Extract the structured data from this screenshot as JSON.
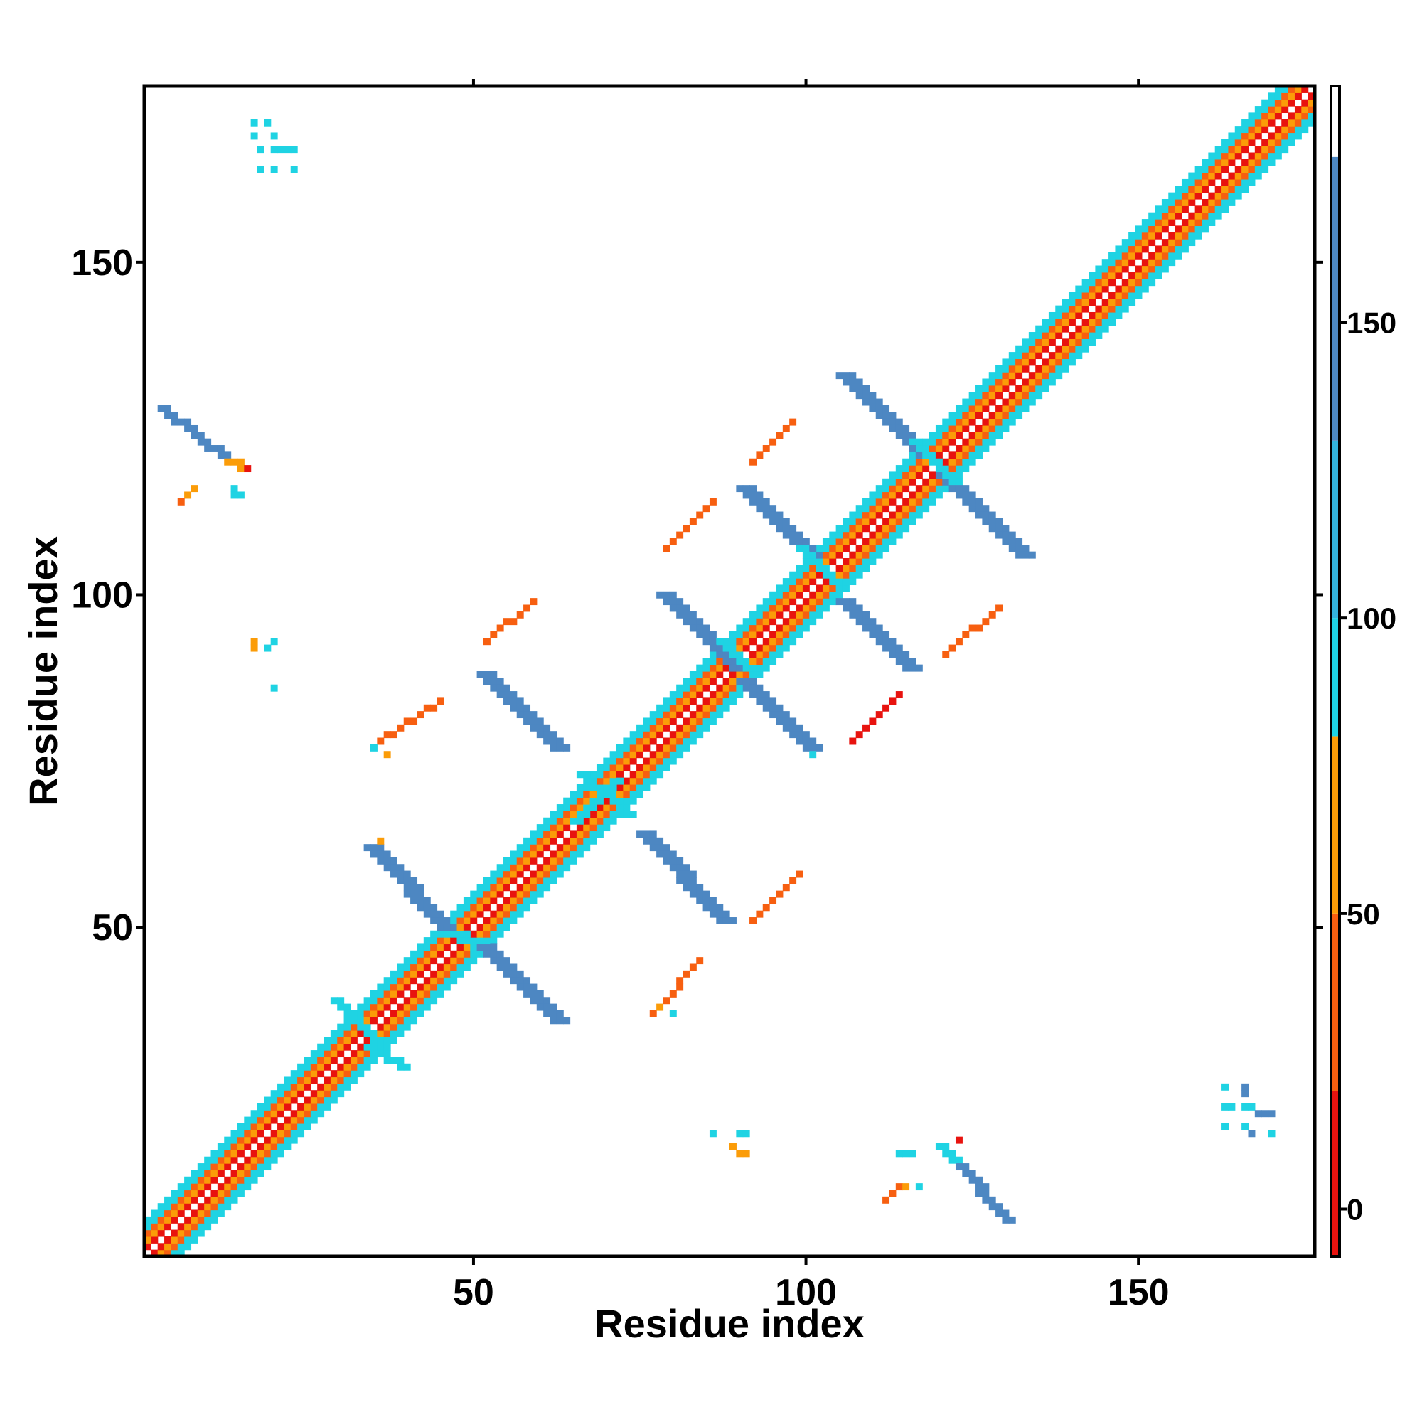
{
  "chart_data": {
    "type": "heatmap",
    "title": "",
    "xlabel": "Residue index",
    "ylabel": "Residue index",
    "xlim": [
      0.5,
      176.5
    ],
    "ylim": [
      0.5,
      176.5
    ],
    "x_ticks": [
      50,
      100,
      150
    ],
    "y_ticks": [
      50,
      100,
      150
    ],
    "grid": false,
    "colorbar": {
      "ticks": [
        0,
        50,
        100,
        150
      ],
      "range": [
        -8,
        190
      ],
      "bands": [
        {
          "from": -8,
          "to": 20,
          "color": "#e8130f"
        },
        {
          "from": 20,
          "to": 50,
          "color": "#f75f10"
        },
        {
          "from": 50,
          "to": 80,
          "color": "#fb9c08"
        },
        {
          "from": 80,
          "to": 100,
          "color": "#1fd3e3"
        },
        {
          "from": 100,
          "to": 130,
          "color": "#34b3dc"
        },
        {
          "from": 130,
          "to": 178,
          "color": "#4d87c2"
        },
        {
          "from": 178,
          "to": 190,
          "color": "#ffffff"
        }
      ]
    },
    "diagonal": {
      "from": 1,
      "to": 176,
      "offset_values": [
        {
          "offset": 0,
          "value": 190
        },
        {
          "offset": 1,
          "value": 10
        },
        {
          "offset": 2,
          "value": 60
        },
        {
          "offset": 3,
          "value": 35
        },
        {
          "offset": 4,
          "value": 90
        },
        {
          "offset": 5,
          "value": 90
        }
      ]
    },
    "segments": [
      {
        "name": "sheet-1",
        "x": [
          35,
          46
        ],
        "y": [
          62,
          50
        ],
        "width": 3,
        "value": 150
      },
      {
        "name": "sheet-1-end",
        "x": [
          47,
          51
        ],
        "y": [
          49,
          47
        ],
        "width": 3,
        "value": 95
      },
      {
        "name": "sheet-2",
        "x": [
          52,
          63
        ],
        "y": [
          47,
          36
        ],
        "width": 3,
        "value": 150
      },
      {
        "name": "sheet-3",
        "x": [
          52,
          63
        ],
        "y": [
          88,
          77
        ],
        "width": 3,
        "value": 150
      },
      {
        "name": "sheet-4",
        "x": [
          76,
          88
        ],
        "y": [
          64,
          51
        ],
        "width": 3,
        "value": 150
      },
      {
        "name": "sheet-5",
        "x": [
          79,
          90
        ],
        "y": [
          100,
          89
        ],
        "width": 3,
        "value": 150
      },
      {
        "name": "sheet-6",
        "x": [
          91,
          101
        ],
        "y": [
          87,
          77
        ],
        "width": 3,
        "value": 150
      },
      {
        "name": "sheet-7",
        "x": [
          91,
          101
        ],
        "y": [
          116,
          106
        ],
        "width": 3,
        "value": 150
      },
      {
        "name": "sheet-8",
        "x": [
          106,
          116
        ],
        "y": [
          99,
          89
        ],
        "width": 3,
        "value": 150
      },
      {
        "name": "sheet-9",
        "x": [
          106,
          118
        ],
        "y": [
          133,
          121
        ],
        "width": 3,
        "value": 150
      },
      {
        "name": "sheet-10",
        "x": [
          121,
          133
        ],
        "y": [
          118,
          106
        ],
        "width": 3,
        "value": 150
      },
      {
        "name": "cross-61",
        "x": [
          30,
          36
        ],
        "y": [
          39,
          33
        ],
        "width": 2,
        "value": 95
      },
      {
        "name": "cross-62",
        "x": [
          35,
          40
        ],
        "y": [
          32,
          29
        ],
        "width": 2,
        "value": 95
      },
      {
        "name": "cross-63",
        "x": [
          67,
          74
        ],
        "y": [
          73,
          67
        ],
        "width": 2,
        "value": 95
      },
      {
        "name": "cross-64",
        "x": [
          66,
          72
        ],
        "y": [
          66,
          72
        ],
        "width": 2,
        "value": 95
      },
      {
        "name": "cross-65",
        "x": [
          100,
          106
        ],
        "y": [
          107,
          101
        ],
        "width": 2,
        "value": 95
      },
      {
        "name": "cross-66",
        "x": [
          88,
          93
        ],
        "y": [
          93,
          88
        ],
        "width": 2,
        "value": 95
      },
      {
        "name": "cross-67",
        "x": [
          117,
          123
        ],
        "y": [
          123,
          117
        ],
        "width": 2,
        "value": 95
      },
      {
        "name": "loop-1",
        "x": [
          4,
          14
        ],
        "y": [
          128,
          120
        ],
        "width": 2,
        "value": 150
      },
      {
        "name": "loop-1-end",
        "x": [
          14,
          16
        ],
        "y": [
          120,
          119
        ],
        "width": 2,
        "value": 60
      },
      {
        "name": "loop-2",
        "x": [
          122,
          131
        ],
        "y": [
          16,
          6
        ],
        "width": 2,
        "value": 150
      },
      {
        "name": "loop-2-start",
        "x": [
          121,
          123
        ],
        "y": [
          17,
          15
        ],
        "width": 2,
        "value": 95
      },
      {
        "name": "contact-1",
        "x": [
          36,
          45
        ],
        "y": [
          78,
          84
        ],
        "width": 1,
        "value": 30
      },
      {
        "name": "contact-2",
        "x": [
          52,
          59
        ],
        "y": [
          93,
          99
        ],
        "width": 1,
        "value": 30
      },
      {
        "name": "contact-3",
        "x": [
          79,
          86
        ],
        "y": [
          107,
          114
        ],
        "width": 1,
        "value": 30
      },
      {
        "name": "contact-4",
        "x": [
          92,
          98
        ],
        "y": [
          120,
          126
        ],
        "width": 1,
        "value": 30
      },
      {
        "name": "contact-5",
        "x": [
          77,
          84
        ],
        "y": [
          37,
          45
        ],
        "width": 1,
        "value": 30
      },
      {
        "name": "contact-6",
        "x": [
          92,
          99
        ],
        "y": [
          51,
          58
        ],
        "width": 1,
        "value": 30
      },
      {
        "name": "contact-7",
        "x": [
          107,
          114
        ],
        "y": [
          78,
          85
        ],
        "width": 1,
        "value": 10
      },
      {
        "name": "contact-8",
        "x": [
          121,
          129
        ],
        "y": [
          91,
          98
        ],
        "width": 1,
        "value": 30
      }
    ],
    "cells": [
      {
        "x": 17,
        "y": 171,
        "value": 95
      },
      {
        "x": 19,
        "y": 171,
        "value": 95
      },
      {
        "x": 17,
        "y": 169,
        "value": 95
      },
      {
        "x": 20,
        "y": 169,
        "value": 95
      },
      {
        "x": 18,
        "y": 167,
        "value": 95
      },
      {
        "x": 20,
        "y": 167,
        "value": 95
      },
      {
        "x": 21,
        "y": 167,
        "value": 95
      },
      {
        "x": 22,
        "y": 167,
        "value": 95
      },
      {
        "x": 23,
        "y": 167,
        "value": 95
      },
      {
        "x": 18,
        "y": 164,
        "value": 95
      },
      {
        "x": 20,
        "y": 164,
        "value": 95
      },
      {
        "x": 23,
        "y": 164,
        "value": 95
      },
      {
        "x": 8,
        "y": 116,
        "value": 60
      },
      {
        "x": 7,
        "y": 115,
        "value": 60
      },
      {
        "x": 6,
        "y": 114,
        "value": 30
      },
      {
        "x": 14,
        "y": 116,
        "value": 95
      },
      {
        "x": 14,
        "y": 115,
        "value": 95
      },
      {
        "x": 15,
        "y": 115,
        "value": 95
      },
      {
        "x": 16,
        "y": 119,
        "value": 10
      },
      {
        "x": 17,
        "y": 93,
        "value": 60
      },
      {
        "x": 17,
        "y": 92,
        "value": 60
      },
      {
        "x": 19,
        "y": 92,
        "value": 95
      },
      {
        "x": 20,
        "y": 93,
        "value": 95
      },
      {
        "x": 20,
        "y": 86,
        "value": 95
      },
      {
        "x": 36,
        "y": 63,
        "value": 60
      },
      {
        "x": 35,
        "y": 77,
        "value": 95
      },
      {
        "x": 37,
        "y": 76,
        "value": 60
      },
      {
        "x": 80,
        "y": 37,
        "value": 95
      },
      {
        "x": 78,
        "y": 38,
        "value": 60
      },
      {
        "x": 101,
        "y": 76,
        "value": 95
      },
      {
        "x": 86,
        "y": 19,
        "value": 95
      },
      {
        "x": 90,
        "y": 19,
        "value": 95
      },
      {
        "x": 91,
        "y": 19,
        "value": 95
      },
      {
        "x": 89,
        "y": 17,
        "value": 60
      },
      {
        "x": 90,
        "y": 16,
        "value": 60
      },
      {
        "x": 91,
        "y": 16,
        "value": 60
      },
      {
        "x": 114,
        "y": 16,
        "value": 95
      },
      {
        "x": 115,
        "y": 16,
        "value": 95
      },
      {
        "x": 116,
        "y": 16,
        "value": 95
      },
      {
        "x": 114,
        "y": 11,
        "value": 30
      },
      {
        "x": 113,
        "y": 10,
        "value": 30
      },
      {
        "x": 112,
        "y": 9,
        "value": 30
      },
      {
        "x": 115,
        "y": 11,
        "value": 60
      },
      {
        "x": 117,
        "y": 11,
        "value": 95
      },
      {
        "x": 123,
        "y": 18,
        "value": 10
      },
      {
        "x": 163,
        "y": 26,
        "value": 95
      },
      {
        "x": 166,
        "y": 26,
        "value": 150
      },
      {
        "x": 166,
        "y": 25,
        "value": 150
      },
      {
        "x": 163,
        "y": 23,
        "value": 95
      },
      {
        "x": 164,
        "y": 23,
        "value": 95
      },
      {
        "x": 166,
        "y": 23,
        "value": 95
      },
      {
        "x": 167,
        "y": 23,
        "value": 95
      },
      {
        "x": 168,
        "y": 22,
        "value": 150
      },
      {
        "x": 169,
        "y": 22,
        "value": 150
      },
      {
        "x": 170,
        "y": 22,
        "value": 150
      },
      {
        "x": 163,
        "y": 20,
        "value": 95
      },
      {
        "x": 166,
        "y": 20,
        "value": 95
      },
      {
        "x": 167,
        "y": 19,
        "value": 150
      },
      {
        "x": 170,
        "y": 19,
        "value": 95
      }
    ]
  }
}
